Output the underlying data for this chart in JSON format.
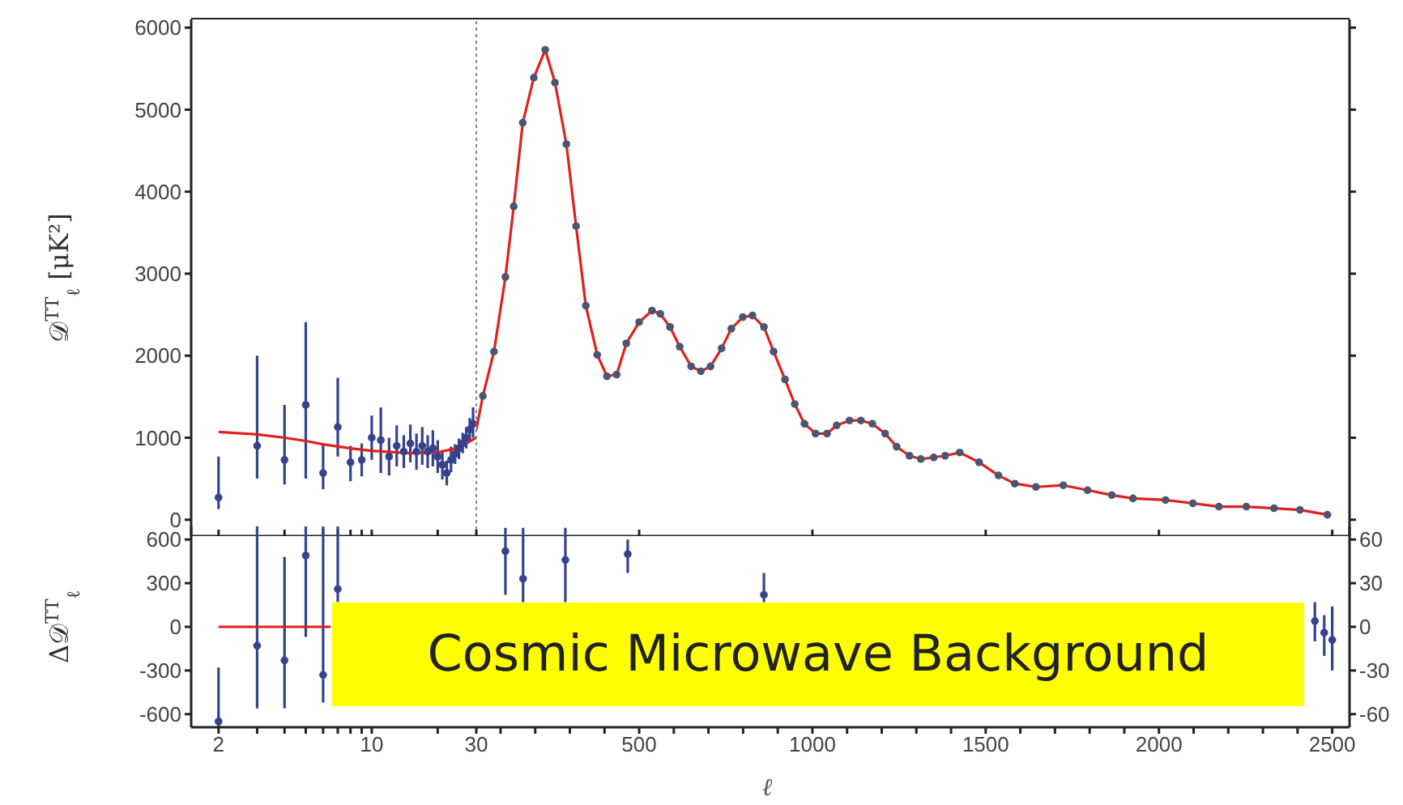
{
  "chart_data": [
    {
      "type": "scatter",
      "ylabel": "𝒟$^{TT}$$_{ℓ}$ [μK²]",
      "log": "x",
      "xlim": [
        1.5,
        30
      ],
      "xticks": [
        2,
        {
          "value": 3,
          "label": null
        },
        {
          "value": 4,
          "label": null
        },
        {
          "value": 5,
          "label": null
        },
        {
          "value": 6,
          "label": null
        },
        {
          "value": 7,
          "label": null
        },
        {
          "value": 8,
          "label": null
        },
        {
          "value": 9,
          "label": null
        },
        {
          "value": 10,
          "label": null
        },
        {
          "value": 20,
          "label": null
        }
      ],
      "ylim": [
        -200,
        6100
      ],
      "yticks": [
        0,
        1000,
        2000,
        3000,
        4000,
        5000,
        6000
      ],
      "tick_labels": "y",
      "series": [
        {
          "type": "line",
          "marker": "none",
          "color": "#e0201c",
          "x": [
            2,
            3,
            4,
            5,
            6,
            8,
            10,
            15,
            20,
            25,
            30
          ],
          "values": [
            1070,
            1040,
            1000,
            960,
            920,
            870,
            840,
            810,
            820,
            880,
            1000
          ]
        },
        {
          "type": "scatter",
          "marker": "circle",
          "color": "#36428c",
          "x": [
            2,
            3,
            4,
            5,
            6,
            7,
            8,
            9,
            10,
            11,
            12,
            13,
            14,
            15,
            16,
            17,
            18,
            19,
            20,
            21,
            22,
            23,
            24,
            25,
            26,
            27,
            28,
            29
          ],
          "values": [
            270,
            900,
            730,
            1400,
            570,
            1130,
            700,
            730,
            1000,
            970,
            770,
            900,
            830,
            930,
            830,
            900,
            830,
            870,
            770,
            670,
            570,
            730,
            800,
            870,
            930,
            1000,
            1100,
            1170
          ],
          "errors": [
            [
              130,
              770
            ],
            [
              500,
              2000
            ],
            [
              430,
              1400
            ],
            [
              500,
              2410
            ],
            [
              370,
              930
            ],
            [
              770,
              1730
            ],
            [
              470,
              900
            ],
            [
              530,
              930
            ],
            [
              730,
              1270
            ],
            [
              570,
              1370
            ],
            [
              540,
              1000
            ],
            [
              650,
              1150
            ],
            [
              630,
              1030
            ],
            [
              700,
              1160
            ],
            [
              610,
              1050
            ],
            [
              670,
              1130
            ],
            [
              630,
              1030
            ],
            [
              650,
              1090
            ],
            [
              570,
              970
            ],
            [
              490,
              850
            ],
            [
              420,
              720
            ],
            [
              580,
              890
            ],
            [
              680,
              920
            ],
            [
              740,
              990
            ],
            [
              810,
              1060
            ],
            [
              870,
              1130
            ],
            [
              960,
              1240
            ],
            [
              1000,
              1370
            ]
          ]
        }
      ]
    },
    {
      "type": "scatter",
      "xlim": [
        30,
        2550
      ],
      "xticks": [
        30,
        500,
        1000,
        1500,
        2000,
        2500
      ],
      "ylim": [
        -200,
        6100
      ],
      "yticks": [
        0,
        1000,
        2000,
        3000,
        4000,
        5000,
        6000
      ],
      "tick_labels": false,
      "ref_lines": [
        {
          "axis": "x",
          "value": 30,
          "color": "#888888",
          "line_style": "dotted"
        }
      ],
      "series": [
        {
          "type": "line",
          "marker": "none",
          "color": "#e0201c",
          "x": [
            30,
            49,
            81,
            114,
            138,
            164,
            196,
            229,
            257,
            290,
            318,
            346,
            379,
            407,
            435,
            463,
            500,
            537,
            561,
            589,
            617,
            650,
            678,
            706,
            738,
            766,
            799,
            827,
            860,
            888,
            921,
            949,
            977,
            1009,
            1042,
            1070,
            1107,
            1140,
            1173,
            1210,
            1243,
            1280,
            1313,
            1350,
            1383,
            1425,
            1481,
            1537,
            1584,
            1645,
            1724,
            1794,
            1864,
            1925,
            2019,
            2098,
            2173,
            2252,
            2332,
            2407,
            2486
          ],
          "values": [
            1100,
            1510,
            2050,
            2960,
            3820,
            4840,
            5390,
            5730,
            5330,
            4580,
            3580,
            2610,
            2010,
            1750,
            1770,
            2150,
            2410,
            2550,
            2510,
            2350,
            2110,
            1870,
            1810,
            1870,
            2090,
            2330,
            2470,
            2490,
            2350,
            2050,
            1710,
            1410,
            1170,
            1050,
            1050,
            1150,
            1210,
            1210,
            1170,
            1050,
            890,
            780,
            740,
            760,
            780,
            820,
            700,
            540,
            440,
            400,
            420,
            360,
            300,
            260,
            240,
            200,
            160,
            160,
            140,
            120,
            60
          ]
        },
        {
          "type": "scatter",
          "marker": "circle",
          "color": "#4a5672",
          "x": [
            49,
            81,
            114,
            138,
            164,
            196,
            229,
            257,
            290,
            318,
            346,
            379,
            407,
            435,
            463,
            500,
            537,
            561,
            589,
            617,
            650,
            678,
            706,
            738,
            766,
            799,
            827,
            860,
            888,
            921,
            949,
            977,
            1009,
            1042,
            1070,
            1107,
            1140,
            1173,
            1210,
            1243,
            1280,
            1313,
            1350,
            1383,
            1425,
            1481,
            1537,
            1584,
            1645,
            1724,
            1794,
            1864,
            1925,
            2019,
            2098,
            2173,
            2252,
            2332,
            2407,
            2486
          ],
          "values": [
            1510,
            2050,
            2960,
            3820,
            4840,
            5390,
            5730,
            5330,
            4580,
            3580,
            2610,
            2010,
            1750,
            1770,
            2150,
            2410,
            2550,
            2510,
            2350,
            2110,
            1870,
            1810,
            1870,
            2090,
            2330,
            2470,
            2490,
            2350,
            2050,
            1710,
            1410,
            1170,
            1050,
            1050,
            1150,
            1210,
            1210,
            1170,
            1050,
            890,
            780,
            740,
            760,
            780,
            820,
            700,
            540,
            440,
            400,
            420,
            360,
            300,
            260,
            240,
            200,
            160,
            160,
            140,
            120,
            60
          ]
        }
      ]
    },
    {
      "type": "scatter",
      "ylabel": "Δ𝒟$^{TT}$$_{ℓ}$",
      "log": "x",
      "xlim": [
        1.5,
        30
      ],
      "xticks": [
        2,
        {
          "value": 3,
          "label": null
        },
        {
          "value": 4,
          "label": null
        },
        {
          "value": 5,
          "label": null
        },
        {
          "value": 6,
          "label": null
        },
        {
          "value": 7,
          "label": null
        },
        {
          "value": 8,
          "label": null
        },
        {
          "value": 9,
          "label": null
        },
        10,
        {
          "value": 20,
          "label": null
        }
      ],
      "ylim": [
        -690,
        690
      ],
      "yticks": [
        -600,
        -300,
        0,
        300,
        600
      ],
      "series": [
        {
          "type": "line",
          "marker": "none",
          "color": "#e0201c",
          "x": [
            2,
            6.5
          ],
          "values": [
            0,
            0
          ]
        },
        {
          "type": "scatter",
          "marker": "circle",
          "color": "#36428c",
          "x": [
            2,
            3,
            4,
            5,
            6,
            7
          ],
          "values": [
            -650,
            -130,
            -230,
            490,
            -330,
            260
          ],
          "errors": [
            [
              -690,
              -280
            ],
            [
              -560,
              690
            ],
            [
              -560,
              480
            ],
            [
              -70,
              690
            ],
            [
              -520,
              690
            ],
            [
              170,
              690
            ]
          ]
        }
      ]
    },
    {
      "type": "scatter",
      "xlabel": "ℓ",
      "xlim": [
        30,
        2550
      ],
      "xticks": [
        30,
        {
          "value": 100,
          "label": null
        },
        {
          "value": 200,
          "label": null
        },
        {
          "value": 300,
          "label": null
        },
        {
          "value": 400,
          "label": null
        },
        500,
        {
          "value": 600,
          "label": null
        },
        {
          "value": 700,
          "label": null
        },
        {
          "value": 800,
          "label": null
        },
        {
          "value": 900,
          "label": null
        },
        1000,
        {
          "value": 1100,
          "label": null
        },
        {
          "value": 1200,
          "label": null
        },
        {
          "value": 1300,
          "label": null
        },
        {
          "value": 1400,
          "label": null
        },
        1500,
        {
          "value": 1600,
          "label": null
        },
        {
          "value": 1700,
          "label": null
        },
        {
          "value": 1800,
          "label": null
        },
        {
          "value": 1900,
          "label": null
        },
        2000,
        {
          "value": 2100,
          "label": null
        },
        {
          "value": 2200,
          "label": null
        },
        {
          "value": 2300,
          "label": null
        },
        {
          "value": 2400,
          "label": null
        },
        2500
      ],
      "ylim": [
        -69,
        69
      ],
      "yticks": [
        -60,
        -30,
        0,
        30,
        60
      ],
      "annotations": [
        "Cosmic Microwave Background"
      ],
      "series": [
        {
          "type": "scatter",
          "marker": "circle",
          "color": "#36428c",
          "x": [
            114,
            165,
            287,
            467,
            860,
            2450,
            2477,
            2500
          ],
          "values": [
            52,
            33,
            46,
            50,
            22,
            4,
            -4,
            -9
          ],
          "errors": [
            [
              22,
              68
            ],
            [
              17,
              68
            ],
            [
              17,
              68
            ],
            [
              37,
              60
            ],
            [
              17,
              37
            ],
            [
              -10,
              17
            ],
            [
              -20,
              8
            ],
            [
              -30,
              14
            ]
          ]
        }
      ]
    }
  ]
}
